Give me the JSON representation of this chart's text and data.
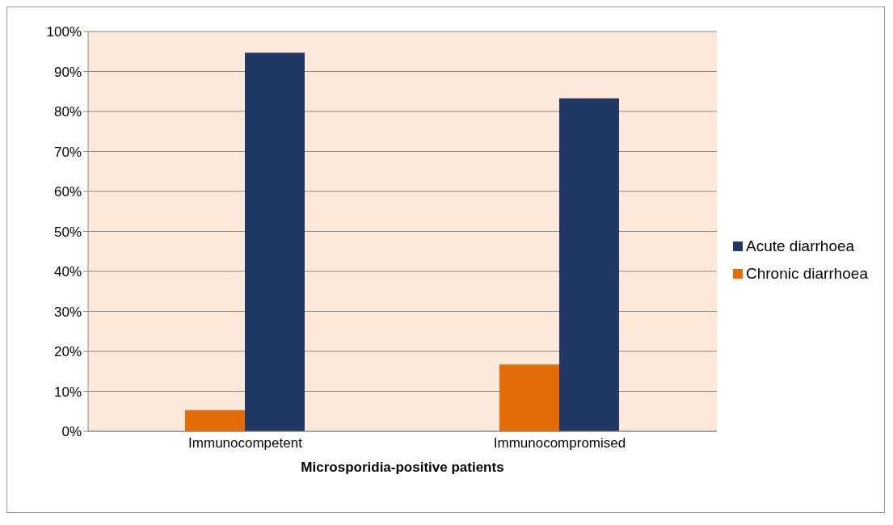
{
  "chart_data": {
    "type": "bar",
    "xlabel": "Microsporidia-positive patients",
    "categories": [
      "Immunocompetent",
      "Immunocompromised"
    ],
    "series": [
      {
        "name": "Chronic diarrhoea",
        "color": "#e36c09",
        "values": [
          5.3,
          16.7
        ]
      },
      {
        "name": "Acute diarrhoea",
        "color": "#1f3864",
        "values": [
          94.7,
          83.3
        ]
      }
    ],
    "ylim": [
      0,
      100
    ],
    "yticks": [
      {
        "value": 0,
        "label": "0%"
      },
      {
        "value": 10,
        "label": "10%"
      },
      {
        "value": 20,
        "label": "20%"
      },
      {
        "value": 30,
        "label": "30%"
      },
      {
        "value": 40,
        "label": "40%"
      },
      {
        "value": 50,
        "label": "50%"
      },
      {
        "value": 60,
        "label": "60%"
      },
      {
        "value": 70,
        "label": "70%"
      },
      {
        "value": 80,
        "label": "80%"
      },
      {
        "value": 90,
        "label": "90%"
      },
      {
        "value": 100,
        "label": "100%"
      }
    ],
    "grid": "y",
    "legend": "right"
  }
}
